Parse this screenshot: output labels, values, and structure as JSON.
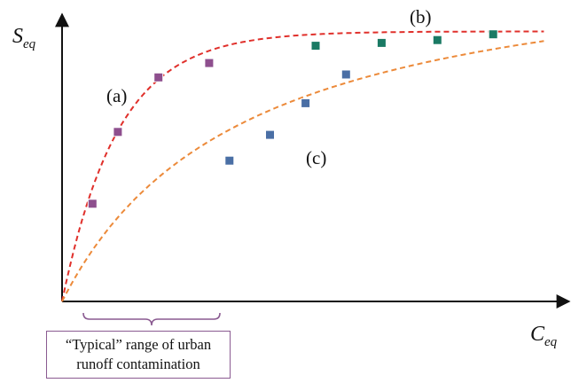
{
  "chart_data": {
    "type": "scatter",
    "xlabel_main": "C",
    "xlabel_sub": "eq",
    "ylabel_main": "S",
    "ylabel_sub": "eq",
    "grid": false,
    "xlim": [
      0,
      100
    ],
    "ylim": [
      0,
      100
    ],
    "series": [
      {
        "label": "(a)",
        "marker_color": "#8e4f8e",
        "line_color": "#e0302b",
        "points": [
          [
            6,
            34
          ],
          [
            11,
            59
          ],
          [
            19,
            78
          ],
          [
            29,
            83
          ]
        ]
      },
      {
        "label": "(b)",
        "marker_color": "#1a7a64",
        "line_color": "#e0302b",
        "points": [
          [
            50,
            89
          ],
          [
            63,
            90
          ],
          [
            74,
            91
          ],
          [
            85,
            93
          ]
        ]
      },
      {
        "label": "(c)",
        "marker_color": "#4a6fa5",
        "line_color": "#ec8a3a",
        "points": [
          [
            33,
            49
          ],
          [
            41,
            58
          ],
          [
            48,
            69
          ],
          [
            56,
            79
          ]
        ]
      }
    ],
    "annotation": {
      "line1": "“Typical” range of urban",
      "line2": "runoff contamination",
      "brace_color": "#8a5a91"
    }
  }
}
